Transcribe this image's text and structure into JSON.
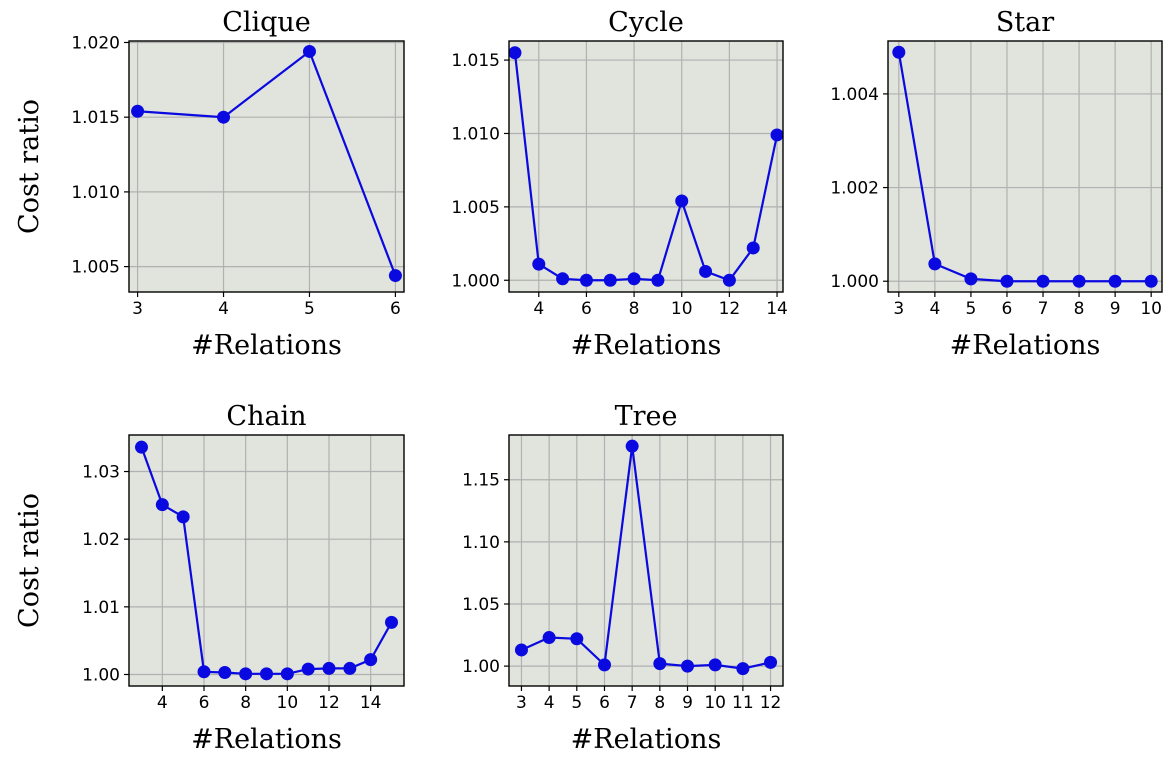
{
  "colors": {
    "background": "#ffffff",
    "panel_bg": "#e1e3dd",
    "grid": "#b1b1b1",
    "series": "#0a0ae0",
    "axis": "#000000"
  },
  "chart_data": [
    {
      "type": "line",
      "title": "Clique",
      "xlabel": "#Relations",
      "ylabel": "Cost ratio",
      "x": [
        3,
        4,
        5,
        6
      ],
      "y": [
        1.0154,
        1.015,
        1.0194,
        1.0044
      ],
      "xlim": [
        2.9,
        6.1
      ],
      "ylim": [
        1.0033,
        1.0201
      ],
      "xticks": [
        3,
        4,
        5,
        6
      ],
      "xtick_labels": [
        "3",
        "4",
        "5",
        "6"
      ],
      "yticks": [
        1.005,
        1.01,
        1.015,
        1.02
      ],
      "ytick_labels": [
        "1.005",
        "1.010",
        "1.015",
        "1.020"
      ],
      "grid": true,
      "marker": "circle"
    },
    {
      "type": "line",
      "title": "Cycle",
      "xlabel": "#Relations",
      "ylabel": "",
      "x": [
        3,
        4,
        5,
        6,
        7,
        8,
        9,
        10,
        11,
        12,
        13,
        14
      ],
      "y": [
        1.0155,
        1.0011,
        1.0001,
        1.0,
        1.0,
        1.0001,
        1.0,
        1.0054,
        1.0006,
        1.0,
        1.0022,
        1.0099
      ],
      "xlim": [
        2.75,
        14.25
      ],
      "ylim": [
        0.9992,
        1.0163
      ],
      "xticks": [
        4,
        6,
        8,
        10,
        12,
        14
      ],
      "xtick_labels": [
        "4",
        "6",
        "8",
        "10",
        "12",
        "14"
      ],
      "yticks": [
        1.0,
        1.005,
        1.01,
        1.015
      ],
      "ytick_labels": [
        "1.000",
        "1.005",
        "1.010",
        "1.015"
      ],
      "grid": true,
      "marker": "circle"
    },
    {
      "type": "line",
      "title": "Star",
      "xlabel": "#Relations",
      "ylabel": "",
      "x": [
        3,
        4,
        5,
        6,
        7,
        8,
        9,
        10
      ],
      "y": [
        1.00489,
        1.00037,
        1.00005,
        1.0,
        1.0,
        1.0,
        1.0,
        1.0
      ],
      "xlim": [
        2.7,
        10.3
      ],
      "ylim": [
        0.99977,
        1.00513
      ],
      "xticks": [
        3,
        4,
        5,
        6,
        7,
        8,
        9,
        10
      ],
      "xtick_labels": [
        "3",
        "4",
        "5",
        "6",
        "7",
        "8",
        "9",
        "10"
      ],
      "yticks": [
        1.0,
        1.002,
        1.004
      ],
      "ytick_labels": [
        "1.000",
        "1.002",
        "1.004"
      ],
      "grid": true,
      "marker": "circle"
    },
    {
      "type": "line",
      "title": "Chain",
      "xlabel": "#Relations",
      "ylabel": "Cost ratio",
      "x": [
        3,
        4,
        5,
        6,
        7,
        8,
        9,
        10,
        11,
        12,
        13,
        14,
        15
      ],
      "y": [
        1.0336,
        1.0251,
        1.0233,
        1.0004,
        1.0003,
        1.0001,
        1.0001,
        1.0001,
        1.0008,
        1.0009,
        1.0009,
        1.0022,
        1.0077
      ],
      "xlim": [
        2.4,
        15.6
      ],
      "ylim": [
        0.9983,
        1.0354
      ],
      "xticks": [
        4,
        6,
        8,
        10,
        12,
        14
      ],
      "xtick_labels": [
        "4",
        "6",
        "8",
        "10",
        "12",
        "14"
      ],
      "yticks": [
        1.0,
        1.01,
        1.02,
        1.03
      ],
      "ytick_labels": [
        "1.00",
        "1.01",
        "1.02",
        "1.03"
      ],
      "grid": true,
      "marker": "circle"
    },
    {
      "type": "line",
      "title": "Tree",
      "xlabel": "#Relations",
      "ylabel": "",
      "x": [
        3,
        4,
        5,
        6,
        7,
        8,
        9,
        10,
        11,
        12
      ],
      "y": [
        1.013,
        1.023,
        1.022,
        1.001,
        1.177,
        1.002,
        1.0,
        1.001,
        0.998,
        1.003
      ],
      "xlim": [
        2.55,
        12.45
      ],
      "ylim": [
        0.984,
        1.186
      ],
      "xticks": [
        3,
        4,
        5,
        6,
        7,
        8,
        9,
        10,
        11,
        12
      ],
      "xtick_labels": [
        "3",
        "4",
        "5",
        "6",
        "7",
        "8",
        "9",
        "10",
        "11",
        "12"
      ],
      "yticks": [
        1.0,
        1.05,
        1.1,
        1.15
      ],
      "ytick_labels": [
        "1.00",
        "1.05",
        "1.10",
        "1.15"
      ],
      "grid": true,
      "marker": "circle"
    }
  ]
}
